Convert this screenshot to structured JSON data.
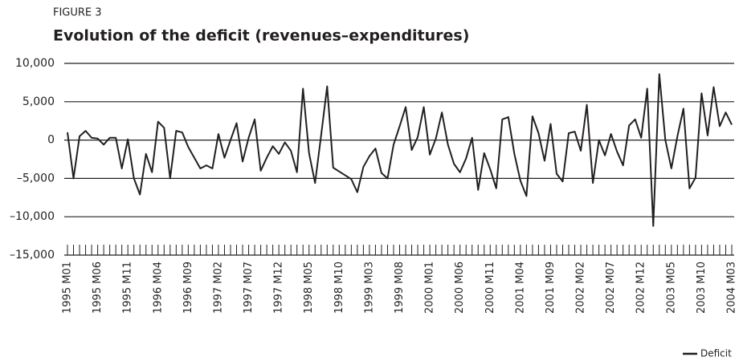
{
  "chart_data": {
    "type": "line",
    "label": "FIGURE 3",
    "title": "Evolution of the deficit (revenues–expenditures)",
    "categories": [
      "1995 M01",
      null,
      null,
      null,
      null,
      "1995 M06",
      null,
      null,
      null,
      null,
      "1995 M11",
      null,
      null,
      null,
      null,
      "1996 M04",
      null,
      null,
      null,
      null,
      "1996 M09",
      null,
      null,
      null,
      null,
      "1997 M02",
      null,
      null,
      null,
      null,
      "1997 M07",
      null,
      null,
      null,
      null,
      "1997 M12",
      null,
      null,
      null,
      null,
      "1998 M05",
      null,
      null,
      null,
      null,
      "1998 M10",
      null,
      null,
      null,
      null,
      "1999 M03",
      null,
      null,
      null,
      null,
      "1999 M08",
      null,
      null,
      null,
      null,
      "2000 M01",
      null,
      null,
      null,
      null,
      "2000 M06",
      null,
      null,
      null,
      null,
      "2000 M11",
      null,
      null,
      null,
      null,
      "2001 M04",
      null,
      null,
      null,
      null,
      "2001 M09",
      null,
      null,
      null,
      null,
      "2002 M02",
      null,
      null,
      null,
      null,
      "2002 M07",
      null,
      null,
      null,
      null,
      "2002 M12",
      null,
      null,
      null,
      null,
      "2003 M05",
      null,
      null,
      null,
      null,
      "2003 M10",
      null,
      null,
      null,
      null,
      "2004 M03"
    ],
    "series": [
      {
        "name": "Deficit",
        "color": "#231f20",
        "values": [
          1000,
          -5000,
          500,
          1200,
          300,
          200,
          -600,
          300,
          300,
          -3700,
          100,
          -5000,
          -7100,
          -1800,
          -4200,
          2400,
          1600,
          -5000,
          1200,
          1000,
          -900,
          -2300,
          -3700,
          -3300,
          -3700,
          800,
          -2300,
          0,
          2200,
          -2800,
          300,
          2700,
          -4000,
          -2300,
          -800,
          -1800,
          -300,
          -1400,
          -4200,
          6700,
          -1700,
          -5600,
          600,
          7000,
          -3600,
          -4100,
          -4600,
          -5100,
          -6800,
          -3500,
          -2100,
          -1100,
          -4300,
          -5000,
          -600,
          1800,
          4300,
          -1300,
          400,
          4300,
          -1900,
          200,
          3600,
          -600,
          -3100,
          -4200,
          -2400,
          300,
          -6500,
          -1700,
          -3800,
          -6300,
          2700,
          3000,
          -1800,
          -5300,
          -7300,
          3100,
          900,
          -2700,
          2100,
          -4400,
          -5400,
          900,
          1100,
          -1400,
          4600,
          -5600,
          0,
          -2000,
          800,
          -1500,
          -3300,
          1900,
          2700,
          300,
          6700,
          -11200,
          8600,
          0,
          -3700,
          500,
          4100,
          -6300,
          -4900,
          6100,
          600,
          6900,
          1800,
          3600,
          2000
        ]
      }
    ],
    "ylim": [
      -15000,
      10000
    ],
    "yticks": [
      {
        "value": -15000,
        "label": "–15,000"
      },
      {
        "value": -10000,
        "label": "–10,000"
      },
      {
        "value": -5000,
        "label": "–5,000"
      },
      0,
      {
        "value": 5000,
        "label": "5,000"
      },
      {
        "value": 10000,
        "label": "10,000"
      }
    ],
    "grid": true,
    "legend": "bottom-right"
  }
}
